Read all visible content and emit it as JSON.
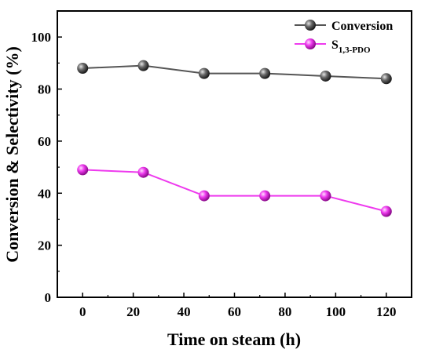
{
  "chart_data": {
    "type": "line",
    "xlabel": "Time on steam (h)",
    "ylabel": "Conversion & Selectivity (%)",
    "xlim": [
      -10,
      130
    ],
    "ylim": [
      0,
      110
    ],
    "xticks": [
      0,
      20,
      40,
      60,
      80,
      100,
      120
    ],
    "yticks": [
      0,
      20,
      40,
      60,
      80,
      100
    ],
    "x": [
      0,
      24,
      48,
      72,
      96,
      120
    ],
    "grid": false,
    "legend_position": "top-right",
    "series": [
      {
        "name": "Conversion",
        "values": [
          88,
          89,
          86,
          86,
          85,
          84
        ],
        "color": "#555555",
        "marker": "sphere"
      },
      {
        "name_main": "S",
        "name_sub": "1,3-PDO",
        "values": [
          49,
          48,
          39,
          39,
          39,
          33
        ],
        "color": "#ee3aee",
        "marker": "sphere"
      }
    ]
  }
}
